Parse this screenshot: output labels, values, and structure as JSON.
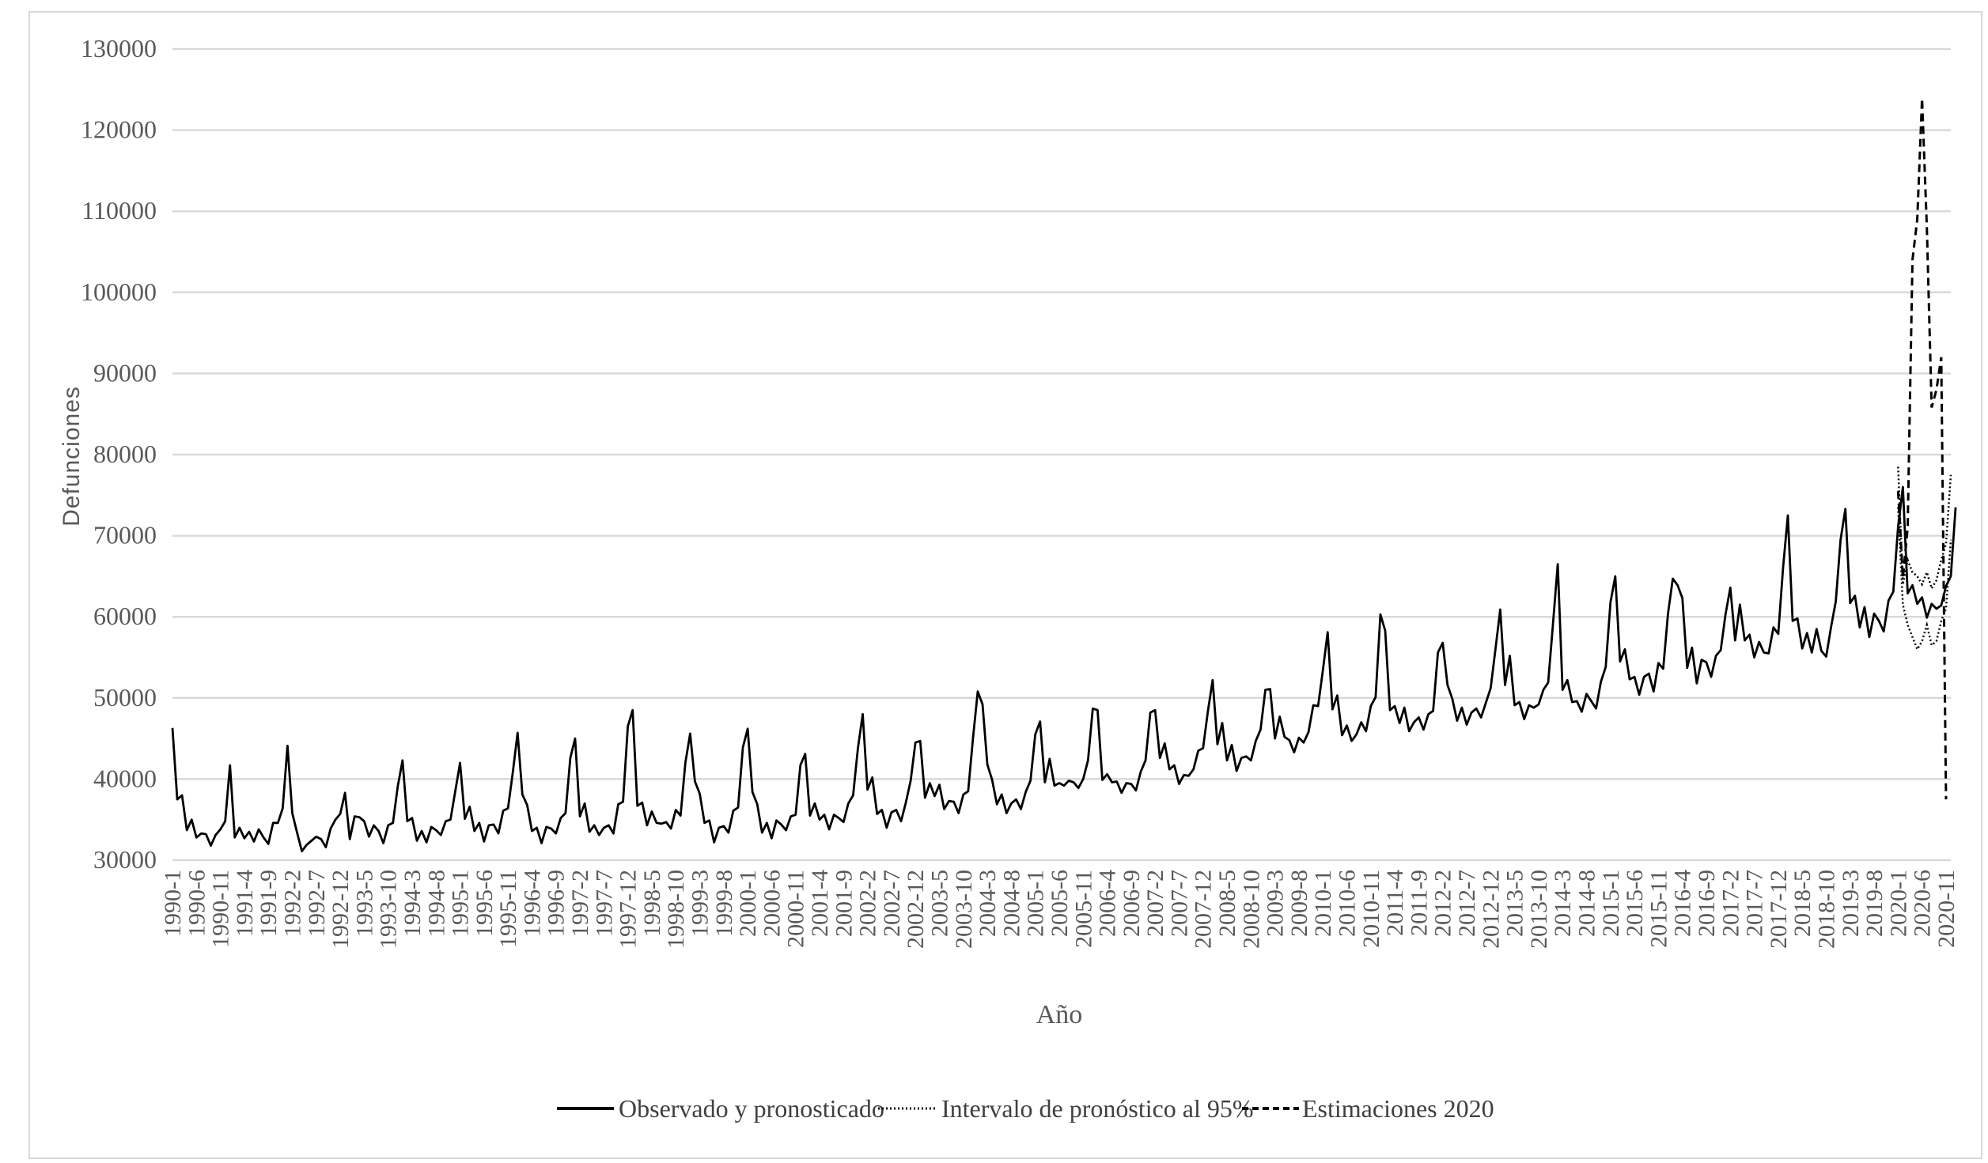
{
  "chart_data": {
    "type": "line",
    "title": "",
    "xlabel": "Año",
    "ylabel": "Defunciones",
    "ylim": [
      30000,
      130000
    ],
    "yticks": [
      "30000",
      "40000",
      "50000",
      "60000",
      "70000",
      "80000",
      "90000",
      "100000",
      "110000",
      "120000",
      "130000"
    ],
    "grid": true,
    "legend_position": "bottom",
    "x_tick_labels": [
      "1990-1",
      "1990-6",
      "1990-11",
      "1991-4",
      "1991-9",
      "1992-2",
      "1992-7",
      "1992-12",
      "1993-5",
      "1993-10",
      "1994-3",
      "1994-8",
      "1995-1",
      "1995-6",
      "1995-11",
      "1996-4",
      "1996-9",
      "1997-2",
      "1997-7",
      "1997-12",
      "1998-5",
      "1998-10",
      "1999-3",
      "1999-8",
      "2000-1",
      "2000-6",
      "2000-11",
      "2001-4",
      "2001-9",
      "2002-2",
      "2002-7",
      "2002-12",
      "2003-5",
      "2003-10",
      "2004-3",
      "2004-8",
      "2005-1",
      "2005-6",
      "2005-11",
      "2006-4",
      "2006-9",
      "2007-2",
      "2007-7",
      "2007-12",
      "2008-5",
      "2008-10",
      "2009-3",
      "2009-8",
      "2010-1",
      "2010-6",
      "2010-11",
      "2011-4",
      "2011-9",
      "2012-2",
      "2012-7",
      "2012-12",
      "2013-5",
      "2013-10",
      "2014-3",
      "2014-8",
      "2015-1",
      "2015-6",
      "2015-11",
      "2016-4",
      "2016-9",
      "2017-2",
      "2017-7",
      "2017-12",
      "2018-5",
      "2018-10",
      "2019-3",
      "2019-8",
      "2020-1",
      "2020-6",
      "2020-11"
    ],
    "x_start": "1990-1",
    "x_end": "2020-12",
    "series": [
      {
        "name": "Observado y pronosticado",
        "style": "solid",
        "color": "#000000",
        "x_start": "1990-1",
        "values": [
          46300,
          37500,
          38000,
          33700,
          35000,
          32800,
          33300,
          33200,
          31800,
          33100,
          33800,
          34800,
          41700,
          32800,
          34000,
          32700,
          33500,
          32300,
          33800,
          32800,
          32000,
          34600,
          34600,
          36400,
          44100,
          35800,
          33400,
          31100,
          31900,
          32400,
          32900,
          32600,
          31600,
          33900,
          35000,
          35700,
          38300,
          32600,
          35400,
          35300,
          34800,
          32900,
          34300,
          33600,
          32100,
          34300,
          34600,
          39100,
          42300,
          34800,
          35200,
          32400,
          33600,
          32200,
          34100,
          33700,
          33100,
          34800,
          35000,
          38500,
          42000,
          35100,
          36600,
          33600,
          34600,
          32300,
          34300,
          34400,
          33300,
          36100,
          36400,
          40800,
          45700,
          38100,
          36800,
          33600,
          34000,
          32100,
          34100,
          33900,
          33300,
          35200,
          35800,
          42600,
          45000,
          35400,
          37000,
          33500,
          34300,
          33100,
          34000,
          34300,
          33300,
          36900,
          37200,
          46500,
          48500,
          36700,
          37100,
          34300,
          36000,
          34600,
          34500,
          34700,
          33900,
          36200,
          35500,
          42000,
          45600,
          39700,
          38200,
          34600,
          34900,
          32200,
          34000,
          34200,
          33400,
          36100,
          36500,
          43900,
          46200,
          38400,
          36900,
          33400,
          34600,
          32700,
          34900,
          34400,
          33700,
          35400,
          35600,
          41700,
          43100,
          35500,
          37000,
          35000,
          35600,
          33800,
          35600,
          35200,
          34700,
          37000,
          38000,
          43800,
          48000,
          38700,
          40200,
          35700,
          36200,
          34000,
          35900,
          36200,
          34800,
          37100,
          39800,
          44500,
          44700,
          37700,
          39500,
          37900,
          39300,
          36300,
          37300,
          37200,
          35800,
          38100,
          38500,
          45000,
          50800,
          49200,
          41800,
          39900,
          36900,
          38100,
          35800,
          37000,
          37500,
          36300,
          38400,
          39800,
          45500,
          47100,
          39600,
          42500,
          39200,
          39500,
          39200,
          39800,
          39600,
          38900,
          40000,
          42300,
          48700,
          48500,
          39900,
          40600,
          39600,
          39700,
          38300,
          39500,
          39400,
          38600,
          40900,
          42300,
          48200,
          48500,
          42600,
          44400,
          41200,
          41700,
          39400,
          40500,
          40400,
          41200,
          43500,
          43800,
          48300,
          52200,
          44300,
          46900,
          42300,
          44200,
          41000,
          42600,
          42800,
          42300,
          44700,
          46100,
          51000,
          51100,
          45000,
          47700,
          45200,
          44800,
          43300,
          45100,
          44500,
          45800,
          49100,
          49000,
          53400,
          58100,
          48600,
          50300,
          45400,
          46600,
          44700,
          45500,
          47000,
          45900,
          49000,
          50100,
          60300,
          58300,
          48500,
          49000,
          46900,
          48800,
          45900,
          47000,
          47600,
          46100,
          48000,
          48400,
          55600,
          56800,
          51600,
          49900,
          47200,
          48800,
          46700,
          48200,
          48700,
          47600,
          49400,
          51200,
          56000,
          60900,
          51600,
          55200,
          49100,
          49500,
          47400,
          49100,
          48800,
          49200,
          51000,
          51900,
          59100,
          66500,
          51000,
          52200,
          49500,
          49600,
          48300,
          50500,
          49600,
          48700,
          52000,
          53800,
          61800,
          65000,
          54500,
          56000,
          52300,
          52600,
          50400,
          52600,
          53000,
          50800,
          54300,
          53600,
          60400,
          64700,
          63900,
          62300,
          53700,
          56200,
          51800,
          54700,
          54400,
          52600,
          55200,
          55900,
          60300,
          63600,
          57100,
          61500,
          57100,
          57800,
          55000,
          56900,
          55600,
          55500,
          58700,
          57900,
          66000,
          72500,
          59500,
          59800,
          56100,
          58000,
          55600,
          58500,
          55800,
          55100,
          58700,
          61900,
          69500,
          73300,
          61700,
          62600,
          58700,
          61200,
          57500,
          60400,
          59500,
          58200,
          62000,
          63100,
          71100,
          76000,
          62900,
          63900,
          61600,
          62400,
          59900,
          61600,
          61000,
          61400,
          63800,
          65000,
          73500
        ]
      },
      {
        "name": "Intervalo de pronóstico al 95%",
        "style": "dotted",
        "color": "#000000",
        "x_start": "2020-1",
        "upper": [
          78500,
          64000,
          67000,
          65500,
          65000,
          64000,
          65500,
          63500,
          64500,
          67000,
          69000,
          77500
        ],
        "lower": [
          73500,
          61500,
          59000,
          57500,
          56000,
          57000,
          59000,
          56500,
          57000,
          59500,
          61000,
          69500
        ]
      },
      {
        "name": "Estimaciones 2020",
        "style": "dashed",
        "color": "#000000",
        "x_start": "2020-1",
        "values": [
          75500,
          64800,
          71000,
          104000,
          109000,
          123900,
          108000,
          85800,
          88000,
          92000,
          37500
        ]
      }
    ]
  }
}
